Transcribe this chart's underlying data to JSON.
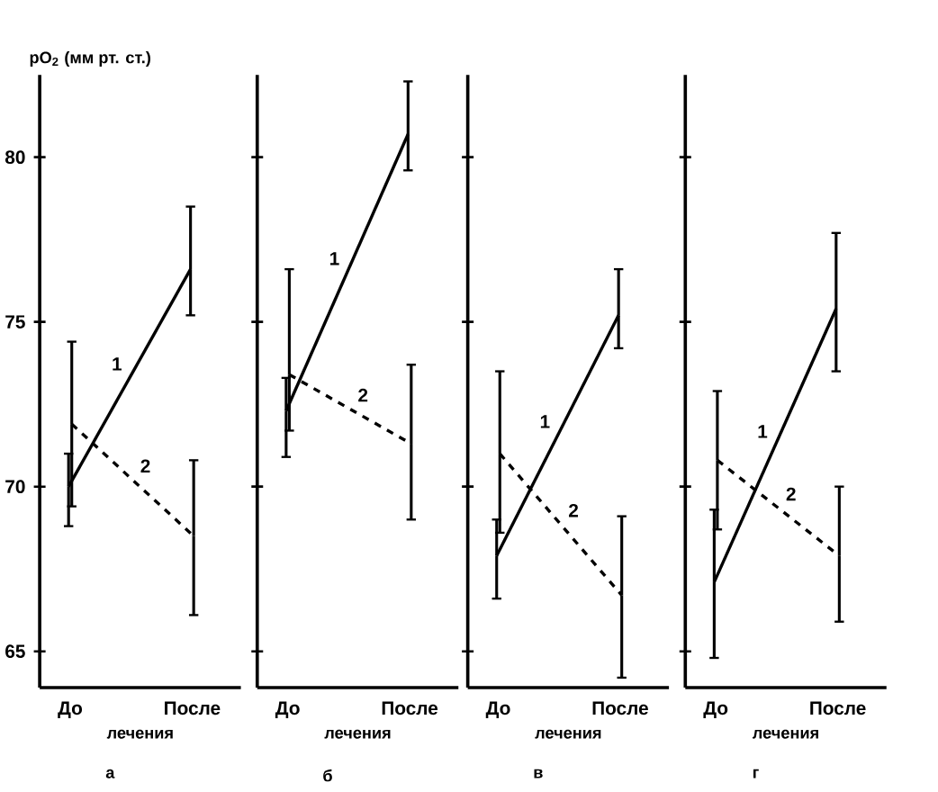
{
  "chart_data": [
    {
      "type": "line",
      "title": "а",
      "xlabel": "лечения",
      "ylabel": "pO$_{2}$ (мм рт. ст.)",
      "categories": [
        "До",
        "После"
      ],
      "ylim": [
        63.9,
        82.5
      ],
      "yticks": [
        65,
        70,
        75,
        80
      ],
      "series": [
        {
          "name": "1",
          "color": "#000000",
          "line_style": "solid",
          "values": [
            70.0,
            76.6
          ],
          "errors": [
            [
              68.8,
              71.0
            ],
            [
              75.2,
              78.5
            ]
          ]
        },
        {
          "name": "2",
          "color": "#000000",
          "line_style": "dashed",
          "values": [
            71.9,
            68.5
          ],
          "errors": [
            [
              69.4,
              74.4
            ],
            [
              66.1,
              70.8
            ]
          ]
        }
      ]
    },
    {
      "type": "line",
      "title": "б",
      "xlabel": "лечения",
      "categories": [
        "До",
        "После"
      ],
      "ylim": [
        63.9,
        82.5
      ],
      "yticks": [
        65,
        70,
        75,
        80
      ],
      "tick_labels": "x",
      "series": [
        {
          "name": "1",
          "color": "#000000",
          "line_style": "solid",
          "values": [
            72.3,
            80.7
          ],
          "errors": [
            [
              70.9,
              73.3
            ],
            [
              79.6,
              82.3
            ]
          ]
        },
        {
          "name": "2",
          "color": "#000000",
          "line_style": "dashed",
          "values": [
            73.4,
            71.3
          ],
          "errors": [
            [
              71.7,
              76.6
            ],
            [
              69.0,
              73.7
            ]
          ]
        }
      ]
    },
    {
      "type": "line",
      "title": "в",
      "xlabel": "лечения",
      "categories": [
        "До",
        "После"
      ],
      "ylim": [
        63.9,
        82.5
      ],
      "yticks": [
        65,
        70,
        75,
        80
      ],
      "tick_labels": "x",
      "series": [
        {
          "name": "1",
          "color": "#000000",
          "line_style": "solid",
          "values": [
            67.9,
            75.2
          ],
          "errors": [
            [
              66.6,
              69.0
            ],
            [
              74.2,
              76.6
            ]
          ]
        },
        {
          "name": "2",
          "color": "#000000",
          "line_style": "dashed",
          "values": [
            71.0,
            66.7
          ],
          "errors": [
            [
              68.6,
              73.5
            ],
            [
              64.2,
              69.1
            ]
          ]
        }
      ]
    },
    {
      "type": "line",
      "title": "г",
      "xlabel": "лечения",
      "categories": [
        "До",
        "После"
      ],
      "ylim": [
        63.9,
        82.5
      ],
      "yticks": [
        65,
        70,
        75,
        80
      ],
      "tick_labels": "x",
      "series": [
        {
          "name": "1",
          "color": "#000000",
          "line_style": "solid",
          "values": [
            67.1,
            75.4
          ],
          "errors": [
            [
              64.8,
              69.3
            ],
            [
              73.5,
              77.7
            ]
          ]
        },
        {
          "name": "2",
          "color": "#000000",
          "line_style": "dashed",
          "values": [
            70.8,
            67.9
          ],
          "errors": [
            [
              68.7,
              72.9
            ],
            [
              65.9,
              70.0
            ]
          ]
        }
      ]
    }
  ]
}
